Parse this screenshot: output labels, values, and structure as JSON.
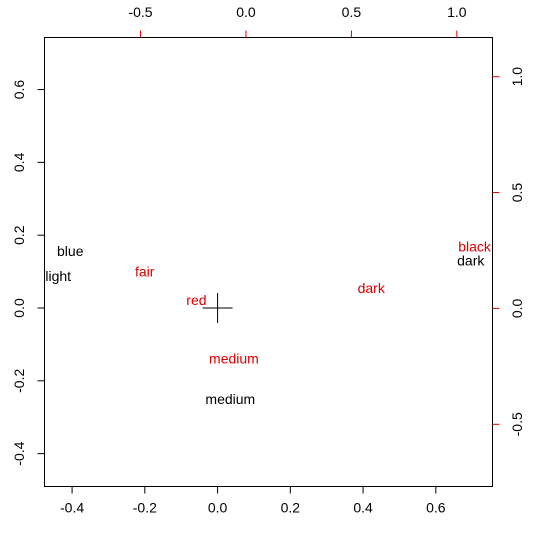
{
  "chart_data": {
    "type": "scatter",
    "title": "",
    "grid": false,
    "colors": {
      "primary": "#000000",
      "secondary": "#dd0000"
    },
    "axes": {
      "bottom": {
        "range": [
          -0.4758,
          0.7558
        ],
        "ticks": [
          -0.4,
          -0.2,
          0.0,
          0.2,
          0.4,
          0.6
        ],
        "labels": [
          "-0.4",
          "-0.2",
          "0.0",
          "0.2",
          "0.4",
          "0.6"
        ],
        "color": "#000000"
      },
      "left": {
        "range": [
          -0.4903,
          0.743
        ],
        "ticks": [
          -0.4,
          -0.2,
          0.0,
          0.2,
          0.4,
          0.6
        ],
        "labels": [
          "-0.4",
          "-0.2",
          "0.0",
          "0.2",
          "0.4",
          "0.6"
        ],
        "color": "#000000"
      },
      "top": {
        "range": [
          -0.9553,
          1.169
        ],
        "ticks": [
          -0.5,
          0.0,
          0.5,
          1.0
        ],
        "labels": [
          "-0.5",
          "0.0",
          "0.5",
          "1.0"
        ],
        "color": "#dd0000"
      },
      "right": {
        "range": [
          -0.7684,
          1.1691
        ],
        "ticks": [
          -0.5,
          0.0,
          0.5,
          1.0
        ],
        "labels": [
          "-0.5",
          "0.0",
          "0.5",
          "1.0"
        ],
        "color": "#dd0000"
      }
    },
    "series": [
      {
        "axes": [
          "bottom",
          "left"
        ],
        "color": "#000000",
        "points": [
          {
            "label": "blue",
            "x": -0.405,
            "y": 0.157
          },
          {
            "label": "light",
            "x": -0.438,
            "y": 0.088
          },
          {
            "label": "medium",
            "x": 0.035,
            "y": -0.25
          },
          {
            "label": "dark",
            "x": 0.696,
            "y": 0.13
          }
        ]
      },
      {
        "axes": [
          "top",
          "right"
        ],
        "color": "#dd0000",
        "points": [
          {
            "label": "fair",
            "x": -0.48,
            "y": 0.16
          },
          {
            "label": "red",
            "x": -0.235,
            "y": 0.036
          },
          {
            "label": "medium",
            "x": -0.057,
            "y": -0.217
          },
          {
            "label": "dark",
            "x": 0.594,
            "y": 0.089
          },
          {
            "label": "black",
            "x": 1.084,
            "y": 0.267
          }
        ]
      }
    ],
    "origin_marker": {
      "x": 0,
      "y": 0,
      "axes": [
        "bottom",
        "left"
      ],
      "color": "#000000"
    }
  }
}
